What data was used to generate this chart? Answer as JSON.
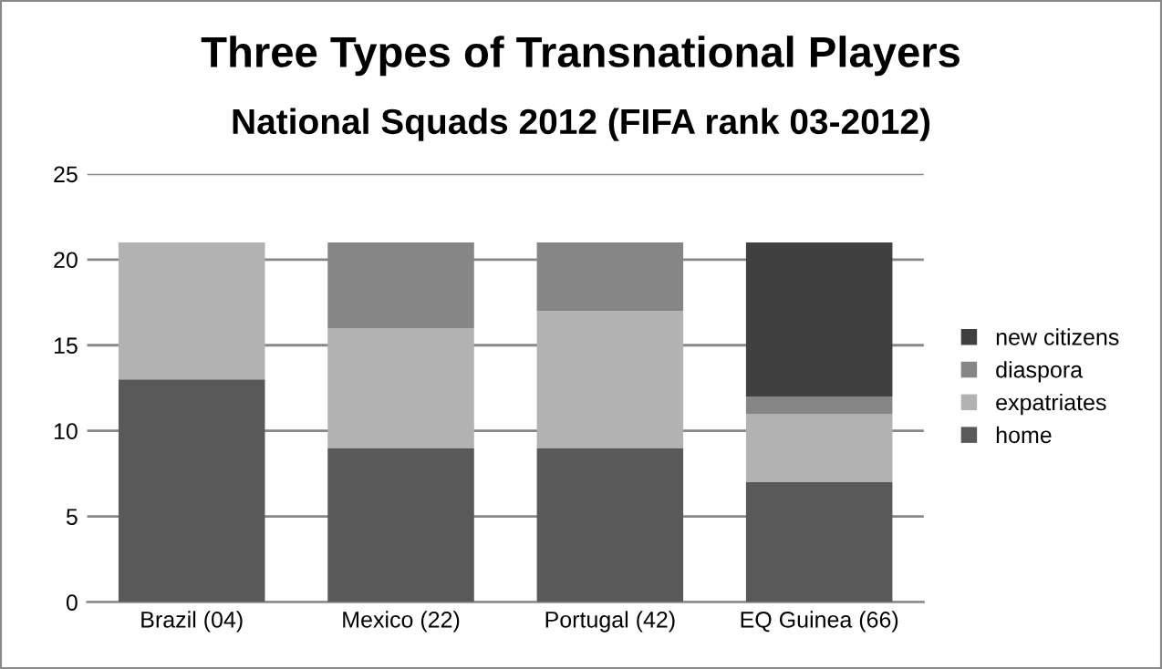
{
  "chart_data": {
    "type": "bar",
    "stacked": true,
    "title": "Three Types of Transnational Players",
    "subtitle": "National Squads 2012 (FIFA rank 03-2012)",
    "categories": [
      "Brazil (04)",
      "Mexico (22)",
      "Portugal (42)",
      "EQ Guinea (66)"
    ],
    "series": [
      {
        "name": "home",
        "color": "#595959",
        "values": [
          13,
          9,
          9,
          7
        ]
      },
      {
        "name": "expatriates",
        "color": "#b2b2b2",
        "values": [
          8,
          7,
          8,
          4
        ]
      },
      {
        "name": "diaspora",
        "color": "#868686",
        "values": [
          0,
          5,
          4,
          1
        ]
      },
      {
        "name": "new citizens",
        "color": "#404040",
        "values": [
          0,
          0,
          0,
          9
        ]
      }
    ],
    "ylim": [
      0,
      25
    ],
    "yticks": [
      0,
      5,
      10,
      15,
      20,
      25
    ],
    "grid": "y",
    "legend": "right"
  }
}
